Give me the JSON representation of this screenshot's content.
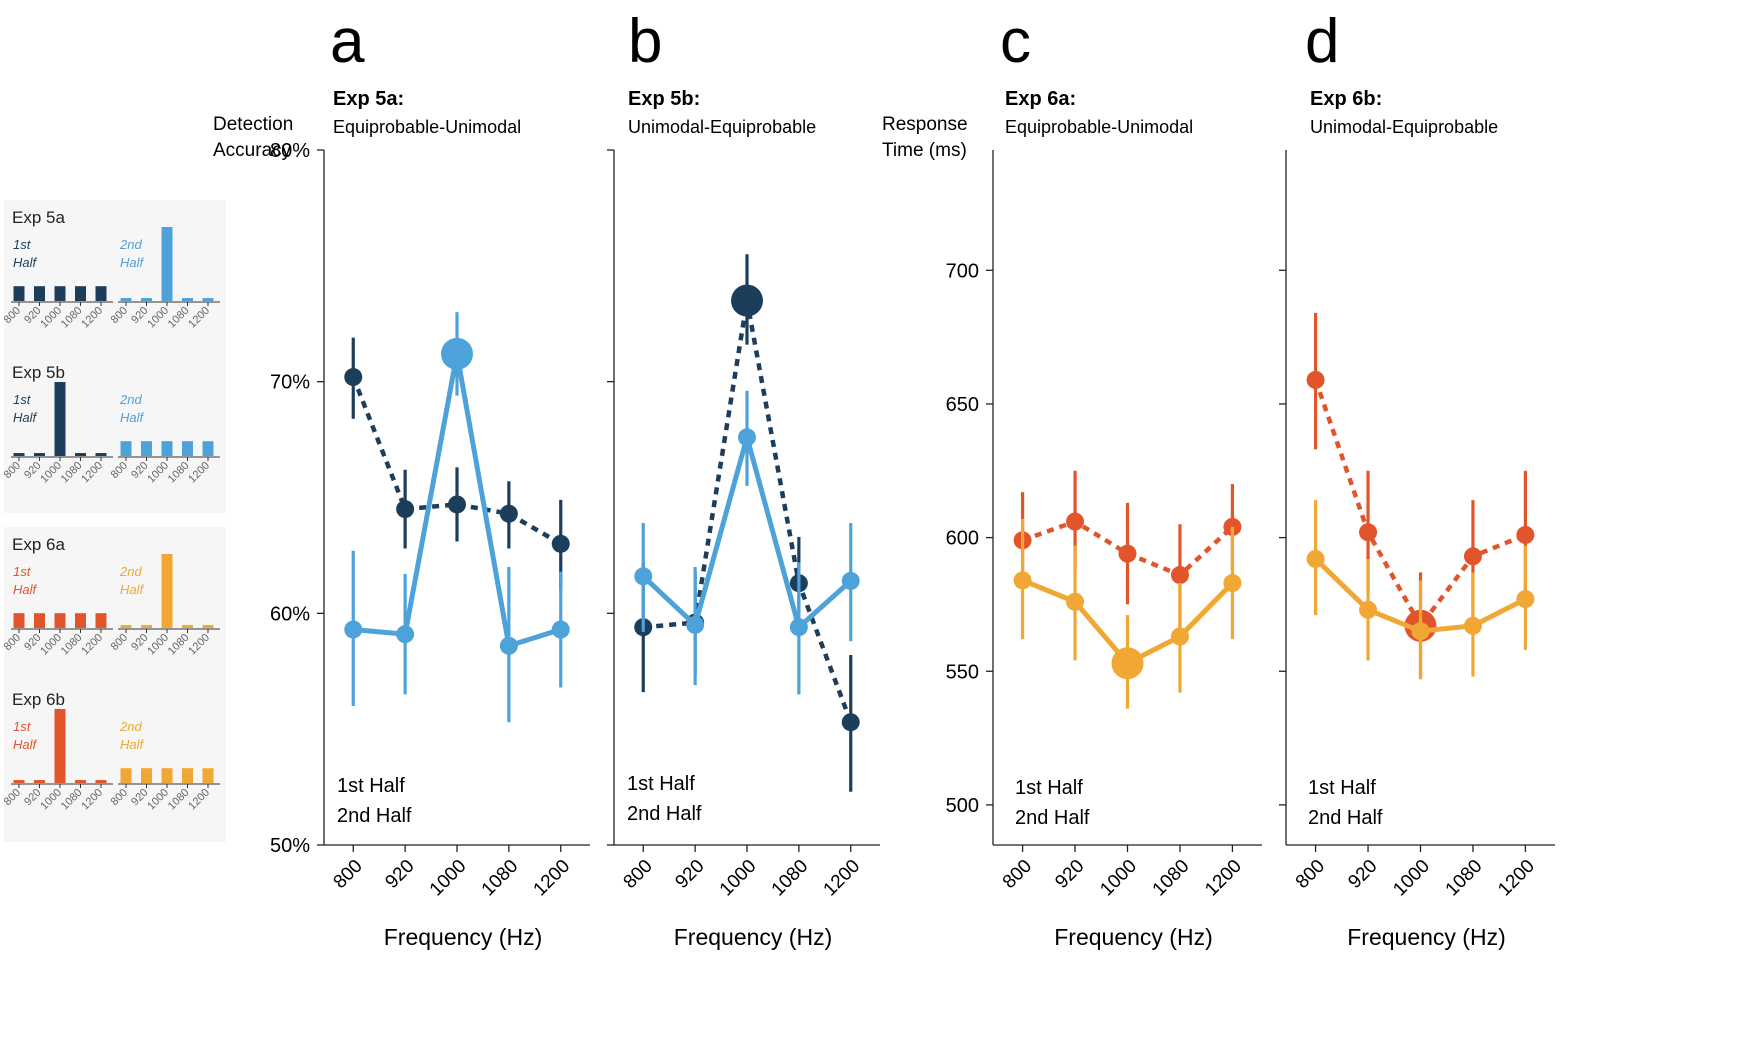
{
  "figure": {
    "panel_letters": [
      "a",
      "b",
      "c",
      "d"
    ]
  },
  "colors": {
    "dark_navy": "#1c3e5b",
    "light_blue": "#4ea2da",
    "red_orange": "#e2552a",
    "yellow_orange": "#f0a734",
    "inset_bg": "#f6f6f6"
  },
  "insets": [
    {
      "label": "Exp 5a",
      "first_label": [
        "1st",
        "Half"
      ],
      "second_label": [
        "2nd",
        "Half"
      ],
      "first_color": "#1c3e5b",
      "second_color": "#4ea2da",
      "first_values": [
        1,
        1,
        1,
        1,
        1
      ],
      "second_values": [
        0.2,
        0.2,
        5,
        0.2,
        0.2
      ],
      "ticks": [
        "800",
        "920",
        "1000",
        "1080",
        "1200"
      ]
    },
    {
      "label": "Exp 5b",
      "first_label": [
        "1st",
        "Half"
      ],
      "second_label": [
        "2nd",
        "Half"
      ],
      "first_color": "#1c3e5b",
      "second_color": "#4ea2da",
      "first_values": [
        0.2,
        0.2,
        5,
        0.2,
        0.2
      ],
      "second_values": [
        1,
        1,
        1,
        1,
        1
      ],
      "ticks": [
        "800",
        "920",
        "1000",
        "1080",
        "1200"
      ]
    },
    {
      "label": "Exp 6a",
      "first_label": [
        "1st",
        "Half"
      ],
      "second_label": [
        "2nd",
        "Half"
      ],
      "first_color": "#e2552a",
      "second_color": "#f0a734",
      "first_values": [
        1,
        1,
        1,
        1,
        1
      ],
      "second_values": [
        0.2,
        0.2,
        5,
        0.2,
        0.2
      ],
      "ticks": [
        "800",
        "920",
        "1000",
        "1080",
        "1200"
      ]
    },
    {
      "label": "Exp 6b",
      "first_label": [
        "1st",
        "Half"
      ],
      "second_label": [
        "2nd",
        "Half"
      ],
      "first_color": "#e2552a",
      "second_color": "#f0a734",
      "first_values": [
        0.2,
        0.2,
        5,
        0.2,
        0.2
      ],
      "second_values": [
        1,
        1,
        1,
        1,
        1
      ],
      "ticks": [
        "800",
        "920",
        "1000",
        "1080",
        "1200"
      ]
    }
  ],
  "chart_data": [
    {
      "type": "line",
      "panel": "a",
      "title_line1": "Exp 5a:",
      "title_line2": "Equiprobable-Unimodal",
      "ylabel": [
        "Detection",
        "Accuracy"
      ],
      "xlabel": "Frequency (Hz)",
      "categories": [
        "800",
        "920",
        "1000",
        "1080",
        "1200"
      ],
      "ylim": [
        50,
        80
      ],
      "yticks": [
        50,
        60,
        70,
        80
      ],
      "ytick_labels": [
        "50%",
        "60%",
        "70%",
        "80%"
      ],
      "series": [
        {
          "name": "1st Half",
          "color": "#1c3e5b",
          "dashed": true,
          "values": [
            70.2,
            64.5,
            64.7,
            64.3,
            63.0
          ],
          "err_low": [
            68.4,
            62.8,
            63.1,
            62.8,
            61.0
          ],
          "err_high": [
            71.9,
            66.2,
            66.3,
            65.7,
            64.9
          ],
          "emphasis": [
            false,
            false,
            false,
            false,
            false
          ]
        },
        {
          "name": "2nd Half",
          "color": "#4ea2da",
          "dashed": false,
          "values": [
            59.3,
            59.1,
            71.2,
            58.6,
            59.3
          ],
          "err_low": [
            56.0,
            56.5,
            69.4,
            55.3,
            56.8
          ],
          "err_high": [
            62.7,
            61.7,
            73.0,
            62.0,
            61.8
          ],
          "emphasis": [
            false,
            false,
            true,
            false,
            false
          ]
        }
      ]
    },
    {
      "type": "line",
      "panel": "b",
      "title_line1": "Exp 5b:",
      "title_line2": "Unimodal-Equiprobable",
      "ylabel": [],
      "xlabel": "Frequency (Hz)",
      "categories": [
        "800",
        "920",
        "1000",
        "1080",
        "1200"
      ],
      "ylim": [
        50,
        80
      ],
      "yticks": [
        50,
        60,
        70,
        80
      ],
      "ytick_labels": [],
      "series": [
        {
          "name": "1st Half",
          "color": "#1c3e5b",
          "dashed": true,
          "values": [
            59.4,
            59.6,
            73.5,
            61.3,
            55.3
          ],
          "err_low": [
            56.6,
            57.4,
            71.6,
            59.3,
            52.3
          ],
          "err_high": [
            62.2,
            61.8,
            75.5,
            63.3,
            58.2
          ],
          "emphasis": [
            false,
            false,
            true,
            false,
            false
          ]
        },
        {
          "name": "2nd Half",
          "color": "#4ea2da",
          "dashed": false,
          "values": [
            61.6,
            59.5,
            67.6,
            59.4,
            61.4
          ],
          "err_low": [
            59.2,
            56.9,
            65.5,
            56.5,
            58.8
          ],
          "err_high": [
            63.9,
            62.0,
            69.6,
            62.2,
            63.9
          ],
          "emphasis": [
            false,
            false,
            false,
            false,
            false
          ]
        }
      ]
    },
    {
      "type": "line",
      "panel": "c",
      "title_line1": "Exp 6a:",
      "title_line2": "Equiprobable-Unimodal",
      "ylabel": [
        "Response",
        "Time (ms)"
      ],
      "xlabel": "Frequency (Hz)",
      "categories": [
        "800",
        "920",
        "1000",
        "1080",
        "1200"
      ],
      "ylim": [
        485,
        745
      ],
      "yticks": [
        500,
        550,
        600,
        650,
        700
      ],
      "ytick_labels": [
        "500",
        "550",
        "600",
        "650",
        "700"
      ],
      "series": [
        {
          "name": "1st Half",
          "color": "#e2552a",
          "dashed": true,
          "values": [
            599,
            606,
            594,
            586,
            604
          ],
          "err_low": [
            581,
            588,
            575,
            566,
            588
          ],
          "err_high": [
            617,
            625,
            613,
            605,
            620
          ],
          "emphasis": [
            false,
            false,
            false,
            false,
            false
          ]
        },
        {
          "name": "2nd Half",
          "color": "#f0a734",
          "dashed": false,
          "values": [
            584,
            576,
            553,
            563,
            583
          ],
          "err_low": [
            562,
            554,
            536,
            542,
            562
          ],
          "err_high": [
            607,
            597,
            571,
            583,
            604
          ],
          "emphasis": [
            false,
            false,
            true,
            false,
            false
          ]
        }
      ]
    },
    {
      "type": "line",
      "panel": "d",
      "title_line1": "Exp 6b:",
      "title_line2": "Unimodal-Equiprobable",
      "ylabel": [],
      "xlabel": "Frequency (Hz)",
      "categories": [
        "800",
        "920",
        "1000",
        "1080",
        "1200"
      ],
      "ylim": [
        485,
        745
      ],
      "yticks": [
        500,
        550,
        600,
        650,
        700
      ],
      "ytick_labels": [],
      "series": [
        {
          "name": "1st Half",
          "color": "#e2552a",
          "dashed": true,
          "values": [
            659,
            602,
            567,
            593,
            601
          ],
          "err_low": [
            633,
            580,
            548,
            571,
            578
          ],
          "err_high": [
            684,
            625,
            587,
            614,
            625
          ],
          "emphasis": [
            false,
            false,
            true,
            false,
            false
          ]
        },
        {
          "name": "2nd Half",
          "color": "#f0a734",
          "dashed": false,
          "values": [
            592,
            573,
            565,
            567,
            577
          ],
          "err_low": [
            571,
            554,
            547,
            548,
            558
          ],
          "err_high": [
            614,
            592,
            584,
            587,
            597
          ],
          "emphasis": [
            false,
            false,
            false,
            false,
            false
          ]
        }
      ]
    }
  ]
}
